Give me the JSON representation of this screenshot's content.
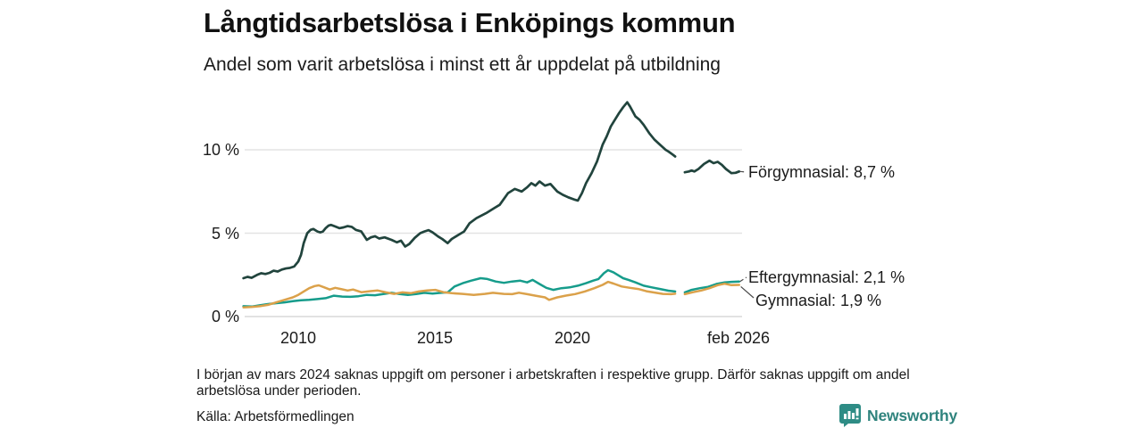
{
  "header": {
    "title": "Långtidsarbetslösa i Enköpings kommun",
    "subtitle": "Andel som varit arbetslösa i minst ett år uppdelat på utbildning"
  },
  "footer": {
    "note": "I början av mars 2024 saknas uppgift om personer i arbetskraften i respektive grupp. Därför saknas uppgift om andel arbetslösa under perioden.",
    "source": "Källa: Arbetsförmedlingen"
  },
  "branding": {
    "name": "Newsworthy",
    "logo_icon": "bar-chart-speech-bubble-icon",
    "text_color": "#2F837D",
    "icon_color": "#2E8C85"
  },
  "chart_data": {
    "type": "line",
    "title": "Långtidsarbetslösa i Enköpings kommun",
    "subtitle": "Andel som varit arbetslösa i minst ett år uppdelat på utbildning",
    "unit": "%",
    "grid": "horizontal",
    "grid_color": "#e3e3e3",
    "xlim": [
      2008.0,
      2026.3
    ],
    "ylim": [
      0,
      13.5
    ],
    "x_ticks": [
      {
        "label": "2010",
        "x": 2010
      },
      {
        "label": "2015",
        "x": 2015
      },
      {
        "label": "2020",
        "x": 2020
      },
      {
        "label": "feb 2026",
        "x": 2026.08
      }
    ],
    "y_ticks": [
      {
        "label": "0 %",
        "value": 0
      },
      {
        "label": "5 %",
        "value": 5
      },
      {
        "label": "10 %",
        "value": 10
      }
    ],
    "data_gap": {
      "from": 2023.75,
      "to": 2024.1,
      "reason": "uppgift saknas (början av mars 2024)"
    },
    "series": [
      {
        "name": "Förgymnasial",
        "end_label": "Förgymnasial: 8,7 %",
        "latest_value": 8.7,
        "color": "#21443D",
        "segments": [
          [
            [
              2008.0,
              2.3
            ],
            [
              2008.15,
              2.38
            ],
            [
              2008.3,
              2.32
            ],
            [
              2008.5,
              2.5
            ],
            [
              2008.65,
              2.6
            ],
            [
              2008.8,
              2.55
            ],
            [
              2008.95,
              2.62
            ],
            [
              2009.1,
              2.75
            ],
            [
              2009.25,
              2.7
            ],
            [
              2009.4,
              2.82
            ],
            [
              2009.55,
              2.88
            ],
            [
              2009.7,
              2.92
            ],
            [
              2009.85,
              3.0
            ],
            [
              2010.0,
              3.3
            ],
            [
              2010.1,
              3.7
            ],
            [
              2010.2,
              4.4
            ],
            [
              2010.33,
              5.0
            ],
            [
              2010.45,
              5.2
            ],
            [
              2010.55,
              5.25
            ],
            [
              2010.7,
              5.1
            ],
            [
              2010.8,
              5.05
            ],
            [
              2010.9,
              5.1
            ],
            [
              2011.0,
              5.3
            ],
            [
              2011.1,
              5.45
            ],
            [
              2011.2,
              5.5
            ],
            [
              2011.35,
              5.4
            ],
            [
              2011.5,
              5.3
            ],
            [
              2011.65,
              5.35
            ],
            [
              2011.8,
              5.42
            ],
            [
              2011.95,
              5.38
            ],
            [
              2012.1,
              5.2
            ],
            [
              2012.3,
              5.1
            ],
            [
              2012.5,
              4.6
            ],
            [
              2012.65,
              4.75
            ],
            [
              2012.8,
              4.82
            ],
            [
              2012.95,
              4.68
            ],
            [
              2013.15,
              4.75
            ],
            [
              2013.4,
              4.6
            ],
            [
              2013.6,
              4.45
            ],
            [
              2013.75,
              4.55
            ],
            [
              2013.9,
              4.2
            ],
            [
              2014.05,
              4.35
            ],
            [
              2014.25,
              4.72
            ],
            [
              2014.45,
              5.0
            ],
            [
              2014.6,
              5.1
            ],
            [
              2014.75,
              5.18
            ],
            [
              2014.9,
              5.05
            ],
            [
              2015.1,
              4.8
            ],
            [
              2015.25,
              4.65
            ],
            [
              2015.45,
              4.4
            ],
            [
              2015.6,
              4.65
            ],
            [
              2015.75,
              4.8
            ],
            [
              2015.9,
              4.95
            ],
            [
              2016.05,
              5.1
            ],
            [
              2016.25,
              5.6
            ],
            [
              2016.5,
              5.9
            ],
            [
              2016.85,
              6.2
            ],
            [
              2017.15,
              6.5
            ],
            [
              2017.35,
              6.7
            ],
            [
              2017.65,
              7.4
            ],
            [
              2017.9,
              7.65
            ],
            [
              2018.15,
              7.5
            ],
            [
              2018.35,
              7.75
            ],
            [
              2018.5,
              8.0
            ],
            [
              2018.65,
              7.85
            ],
            [
              2018.8,
              8.1
            ],
            [
              2019.0,
              7.85
            ],
            [
              2019.2,
              7.95
            ],
            [
              2019.45,
              7.5
            ],
            [
              2019.65,
              7.3
            ],
            [
              2019.85,
              7.15
            ],
            [
              2020.1,
              7.0
            ],
            [
              2020.2,
              6.95
            ],
            [
              2020.35,
              7.4
            ],
            [
              2020.5,
              8.0
            ],
            [
              2020.7,
              8.6
            ],
            [
              2020.9,
              9.3
            ],
            [
              2021.1,
              10.3
            ],
            [
              2021.25,
              10.8
            ],
            [
              2021.4,
              11.4
            ],
            [
              2021.55,
              11.8
            ],
            [
              2021.7,
              12.2
            ],
            [
              2021.85,
              12.55
            ],
            [
              2022.0,
              12.85
            ],
            [
              2022.1,
              12.6
            ],
            [
              2022.3,
              12.0
            ],
            [
              2022.45,
              11.8
            ],
            [
              2022.6,
              11.5
            ],
            [
              2022.8,
              11.0
            ],
            [
              2023.0,
              10.6
            ],
            [
              2023.2,
              10.3
            ],
            [
              2023.4,
              10.0
            ],
            [
              2023.5,
              9.9
            ],
            [
              2023.65,
              9.72
            ],
            [
              2023.75,
              9.6
            ]
          ],
          [
            [
              2024.1,
              8.65
            ],
            [
              2024.25,
              8.7
            ],
            [
              2024.35,
              8.76
            ],
            [
              2024.45,
              8.7
            ],
            [
              2024.6,
              8.85
            ],
            [
              2024.8,
              9.15
            ],
            [
              2025.0,
              9.35
            ],
            [
              2025.15,
              9.2
            ],
            [
              2025.3,
              9.28
            ],
            [
              2025.45,
              9.1
            ],
            [
              2025.6,
              8.85
            ],
            [
              2025.8,
              8.6
            ],
            [
              2025.95,
              8.62
            ],
            [
              2026.08,
              8.7
            ]
          ]
        ]
      },
      {
        "name": "Eftergymnasial",
        "end_label": "Eftergymnasial: 2,1 %",
        "latest_value": 2.1,
        "color": "#169C8B",
        "segments": [
          [
            [
              2008.0,
              0.62
            ],
            [
              2008.3,
              0.6
            ],
            [
              2008.6,
              0.68
            ],
            [
              2008.9,
              0.75
            ],
            [
              2009.2,
              0.8
            ],
            [
              2009.5,
              0.85
            ],
            [
              2009.8,
              0.92
            ],
            [
              2010.1,
              0.98
            ],
            [
              2010.4,
              1.0
            ],
            [
              2010.7,
              1.05
            ],
            [
              2011.0,
              1.1
            ],
            [
              2011.3,
              1.25
            ],
            [
              2011.6,
              1.2
            ],
            [
              2011.9,
              1.18
            ],
            [
              2012.2,
              1.22
            ],
            [
              2012.5,
              1.3
            ],
            [
              2012.8,
              1.28
            ],
            [
              2013.1,
              1.35
            ],
            [
              2013.4,
              1.42
            ],
            [
              2013.7,
              1.35
            ],
            [
              2014.0,
              1.3
            ],
            [
              2014.3,
              1.35
            ],
            [
              2014.6,
              1.42
            ],
            [
              2014.9,
              1.38
            ],
            [
              2015.2,
              1.42
            ],
            [
              2015.45,
              1.45
            ],
            [
              2015.7,
              1.8
            ],
            [
              2016.0,
              2.0
            ],
            [
              2016.3,
              2.15
            ],
            [
              2016.65,
              2.3
            ],
            [
              2016.9,
              2.25
            ],
            [
              2017.2,
              2.1
            ],
            [
              2017.5,
              2.02
            ],
            [
              2017.8,
              2.1
            ],
            [
              2018.1,
              2.15
            ],
            [
              2018.35,
              2.05
            ],
            [
              2018.55,
              2.2
            ],
            [
              2018.8,
              1.95
            ],
            [
              2019.05,
              1.72
            ],
            [
              2019.3,
              1.6
            ],
            [
              2019.6,
              1.7
            ],
            [
              2019.9,
              1.75
            ],
            [
              2020.2,
              1.85
            ],
            [
              2020.5,
              2.0
            ],
            [
              2020.75,
              2.15
            ],
            [
              2020.95,
              2.25
            ],
            [
              2021.15,
              2.6
            ],
            [
              2021.3,
              2.78
            ],
            [
              2021.5,
              2.65
            ],
            [
              2021.65,
              2.5
            ],
            [
              2021.85,
              2.3
            ],
            [
              2022.05,
              2.2
            ],
            [
              2022.3,
              2.05
            ],
            [
              2022.6,
              1.85
            ],
            [
              2022.9,
              1.75
            ],
            [
              2023.2,
              1.65
            ],
            [
              2023.5,
              1.55
            ],
            [
              2023.75,
              1.5
            ]
          ],
          [
            [
              2024.1,
              1.45
            ],
            [
              2024.35,
              1.6
            ],
            [
              2024.65,
              1.7
            ],
            [
              2024.95,
              1.78
            ],
            [
              2025.25,
              1.95
            ],
            [
              2025.55,
              2.05
            ],
            [
              2025.8,
              2.08
            ],
            [
              2026.08,
              2.1
            ]
          ]
        ]
      },
      {
        "name": "Gymnasial",
        "end_label": "Gymnasial: 1,9 %",
        "latest_value": 1.9,
        "color": "#DBA14A",
        "segments": [
          [
            [
              2008.0,
              0.55
            ],
            [
              2008.3,
              0.58
            ],
            [
              2008.6,
              0.62
            ],
            [
              2008.9,
              0.7
            ],
            [
              2009.2,
              0.85
            ],
            [
              2009.5,
              1.0
            ],
            [
              2009.8,
              1.15
            ],
            [
              2010.0,
              1.3
            ],
            [
              2010.2,
              1.5
            ],
            [
              2010.4,
              1.7
            ],
            [
              2010.6,
              1.83
            ],
            [
              2010.75,
              1.87
            ],
            [
              2010.95,
              1.75
            ],
            [
              2011.15,
              1.62
            ],
            [
              2011.35,
              1.72
            ],
            [
              2011.55,
              1.65
            ],
            [
              2011.8,
              1.56
            ],
            [
              2012.0,
              1.62
            ],
            [
              2012.3,
              1.46
            ],
            [
              2012.6,
              1.52
            ],
            [
              2012.9,
              1.56
            ],
            [
              2013.2,
              1.45
            ],
            [
              2013.5,
              1.36
            ],
            [
              2013.8,
              1.45
            ],
            [
              2014.1,
              1.4
            ],
            [
              2014.4,
              1.5
            ],
            [
              2014.7,
              1.56
            ],
            [
              2015.0,
              1.6
            ],
            [
              2015.3,
              1.46
            ],
            [
              2015.6,
              1.4
            ],
            [
              2016.0,
              1.36
            ],
            [
              2016.4,
              1.3
            ],
            [
              2016.8,
              1.36
            ],
            [
              2017.1,
              1.42
            ],
            [
              2017.5,
              1.36
            ],
            [
              2017.8,
              1.34
            ],
            [
              2018.05,
              1.43
            ],
            [
              2018.35,
              1.34
            ],
            [
              2018.65,
              1.25
            ],
            [
              2019.0,
              1.15
            ],
            [
              2019.15,
              1.0
            ],
            [
              2019.45,
              1.15
            ],
            [
              2019.75,
              1.25
            ],
            [
              2020.1,
              1.35
            ],
            [
              2020.45,
              1.5
            ],
            [
              2020.8,
              1.7
            ],
            [
              2021.1,
              1.9
            ],
            [
              2021.3,
              2.08
            ],
            [
              2021.5,
              1.98
            ],
            [
              2021.8,
              1.8
            ],
            [
              2022.1,
              1.72
            ],
            [
              2022.4,
              1.65
            ],
            [
              2022.7,
              1.52
            ],
            [
              2023.0,
              1.44
            ],
            [
              2023.3,
              1.36
            ],
            [
              2023.6,
              1.34
            ],
            [
              2023.75,
              1.37
            ]
          ],
          [
            [
              2024.1,
              1.34
            ],
            [
              2024.4,
              1.46
            ],
            [
              2024.7,
              1.56
            ],
            [
              2025.0,
              1.7
            ],
            [
              2025.3,
              1.88
            ],
            [
              2025.55,
              1.97
            ],
            [
              2025.8,
              1.88
            ],
            [
              2026.08,
              1.9
            ]
          ]
        ]
      }
    ]
  }
}
